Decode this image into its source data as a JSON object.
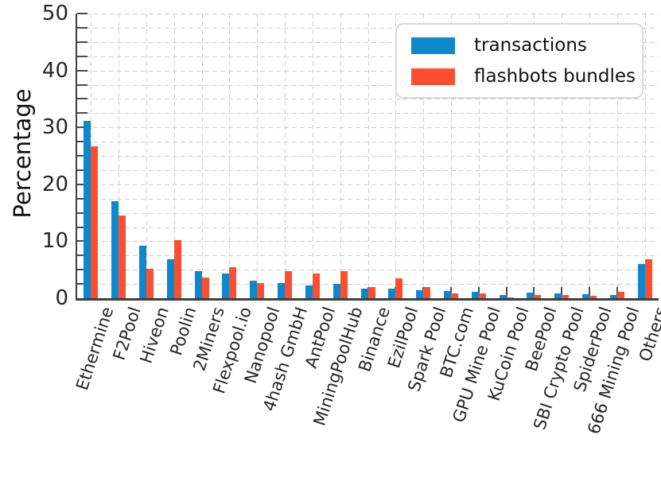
{
  "chart_data": {
    "type": "bar",
    "title": "",
    "xlabel": "",
    "ylabel": "Percentage",
    "ylim": [
      0,
      50
    ],
    "yticks": [
      0,
      10,
      20,
      30,
      40,
      50
    ],
    "minor_grid_step": 2.5,
    "grid": "dashed, light gray, horizontal minor lines every 2.5 and vertical line at each category",
    "legend_position": "upper right",
    "categories": [
      "Ethermine",
      "F2Pool",
      "Hiveon",
      "Poolin",
      "2Miners",
      "Flexpool.io",
      "Nanopool",
      "4hash GmbH",
      "AntPool",
      "MiningPoolHub",
      "Binance",
      "EzilPool",
      "Spark Pool",
      "BTC.com",
      "GPU Mine Pool",
      "KuCoin Pool",
      "BeePool",
      "SBI Crypto Pool",
      "SpiderPool",
      "666 Mining Pool",
      "Others"
    ],
    "series": [
      {
        "name": "transactions",
        "color": "#0e87cd",
        "values": [
          31.2,
          17.1,
          9.2,
          6.9,
          4.8,
          4.3,
          3.1,
          2.7,
          2.2,
          2.5,
          1.7,
          1.7,
          1.4,
          1.3,
          1.1,
          0.5,
          1.0,
          0.9,
          0.7,
          0.6,
          6.0
        ]
      },
      {
        "name": "flashbots bundles",
        "color": "#fc4f30",
        "values": [
          26.7,
          14.5,
          5.1,
          10.2,
          3.6,
          5.5,
          2.6,
          4.7,
          4.3,
          4.7,
          2.0,
          3.5,
          2.0,
          0.9,
          0.8,
          0.1,
          0.6,
          0.5,
          0.4,
          1.1,
          6.8
        ]
      }
    ],
    "colors": {
      "axis_spine": "#3f3f3f",
      "tick_marks": "#4a4a4a",
      "grid": "#cdcdcd",
      "text": "#262626",
      "background": "#ffffff"
    }
  }
}
